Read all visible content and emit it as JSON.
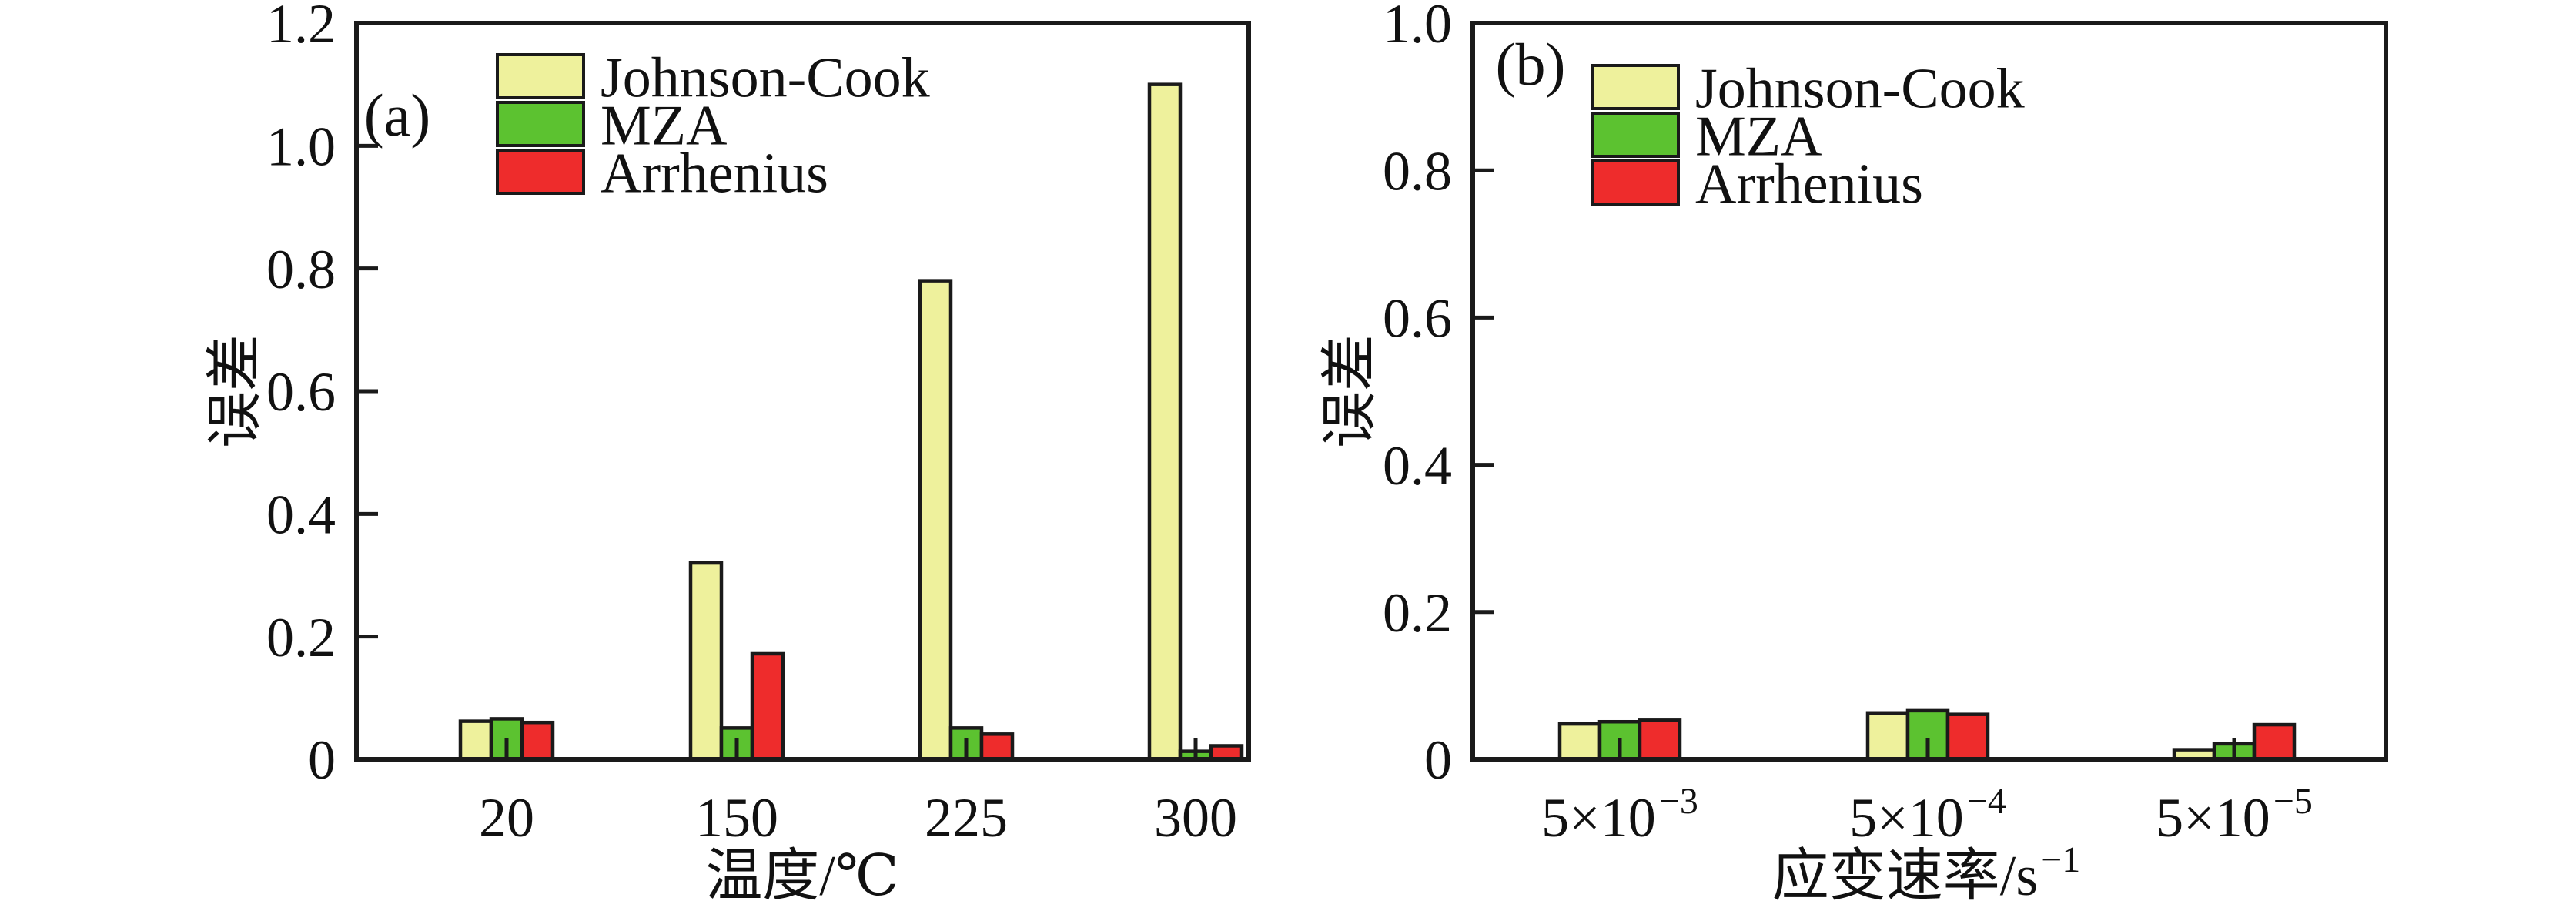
{
  "figure": {
    "background": "#ffffff",
    "axis_color": "#1a1a1a",
    "series_colors": {
      "johnson_cook": "#eef19c",
      "mza": "#5cc230",
      "arrhenius": "#ee2c2c"
    }
  },
  "chart_data": [
    {
      "type": "bar",
      "panel_label": "(a)",
      "xlabel": {
        "base": "温度/℃",
        "exp": ""
      },
      "ylabel": "误差",
      "ylim": [
        0,
        1.2
      ],
      "yticks": [
        "0",
        "0.2",
        "0.4",
        "0.6",
        "0.8",
        "1.0",
        "1.2"
      ],
      "categories": [
        {
          "base": "20",
          "exp": ""
        },
        {
          "base": "150",
          "exp": ""
        },
        {
          "base": "225",
          "exp": ""
        },
        {
          "base": "300",
          "exp": ""
        }
      ],
      "legend_position": "upper-left-inside",
      "grid": false,
      "series": [
        {
          "name": "Johnson-Cook",
          "color": "#eef19c",
          "values": [
            0.062,
            0.32,
            0.78,
            1.1
          ]
        },
        {
          "name": "MZA",
          "color": "#5cc230",
          "values": [
            0.066,
            0.051,
            0.051,
            0.013
          ]
        },
        {
          "name": "Arrhenius",
          "color": "#ee2c2c",
          "values": [
            0.06,
            0.172,
            0.041,
            0.022
          ]
        }
      ]
    },
    {
      "type": "bar",
      "panel_label": "(b)",
      "xlabel": {
        "base": "应变速率/s",
        "exp": "−1"
      },
      "ylabel": "误差",
      "ylim": [
        0,
        1.0
      ],
      "yticks": [
        "0",
        "0.2",
        "0.4",
        "0.6",
        "0.8",
        "1.0"
      ],
      "categories": [
        {
          "base": "5×10",
          "exp": "−3"
        },
        {
          "base": "5×10",
          "exp": "−4"
        },
        {
          "base": "5×10",
          "exp": "−5"
        }
      ],
      "legend_position": "upper-left-inside",
      "grid": false,
      "series": [
        {
          "name": "Johnson-Cook",
          "color": "#eef19c",
          "values": [
            0.048,
            0.063,
            0.013
          ]
        },
        {
          "name": "MZA",
          "color": "#5cc230",
          "values": [
            0.051,
            0.066,
            0.021
          ]
        },
        {
          "name": "Arrhenius",
          "color": "#ee2c2c",
          "values": [
            0.053,
            0.061,
            0.047
          ]
        }
      ]
    }
  ]
}
